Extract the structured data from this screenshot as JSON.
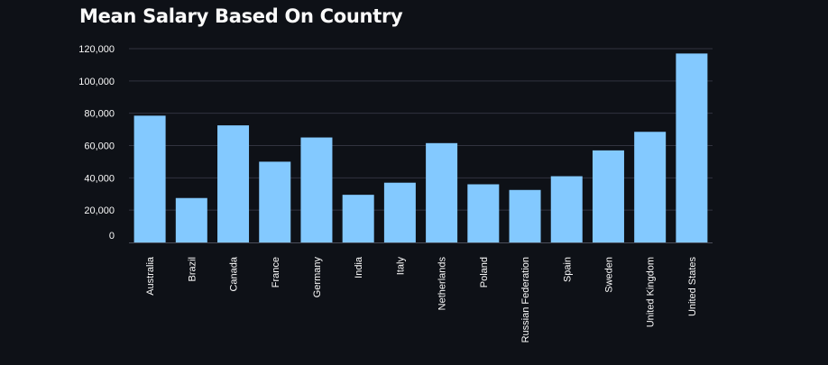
{
  "chart_data": {
    "type": "bar",
    "title": "Mean Salary Based On Country",
    "xlabel": "",
    "ylabel": "",
    "categories": [
      "Australia",
      "Brazil",
      "Canada",
      "France",
      "Germany",
      "India",
      "Italy",
      "Netherlands",
      "Poland",
      "Russian Federation",
      "Spain",
      "Sweden",
      "United Kingdom",
      "United States"
    ],
    "values": [
      78500,
      27500,
      72500,
      50000,
      65000,
      29500,
      37000,
      61500,
      36000,
      32500,
      41000,
      57000,
      68500,
      117000
    ],
    "ylim": [
      0,
      120000
    ],
    "yticks": [
      0,
      20000,
      40000,
      60000,
      80000,
      100000,
      120000
    ],
    "ytick_labels": [
      "0",
      "20,000",
      "40,000",
      "60,000",
      "80,000",
      "100,000",
      "120,000"
    ],
    "grid": true,
    "legend": "none",
    "colors": {
      "bar": "#83c9ff",
      "background": "#0e1117",
      "grid": "#31333f",
      "text": "#fafafa"
    }
  }
}
